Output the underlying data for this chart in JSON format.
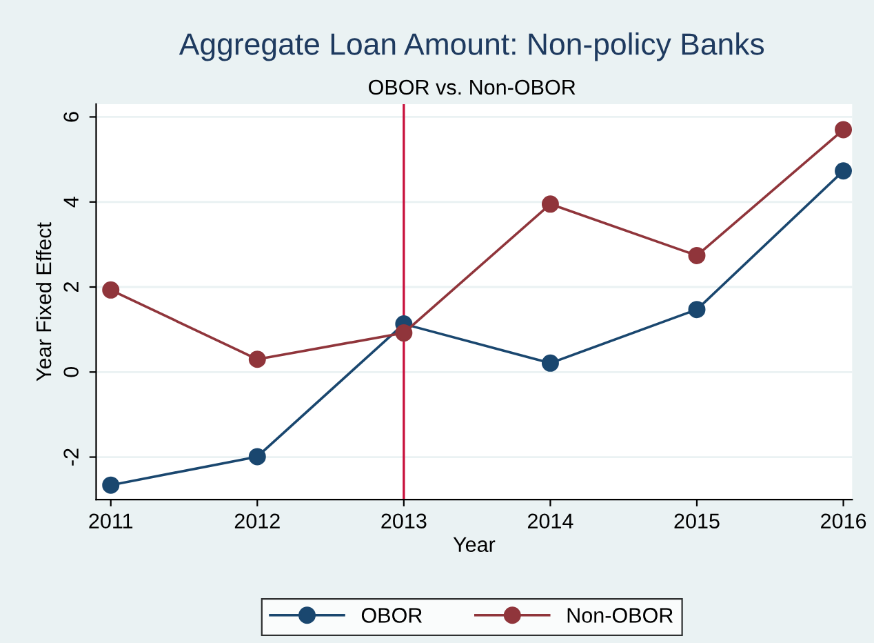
{
  "chart_data": {
    "type": "line",
    "title": "Aggregate Loan Amount: Non-policy Banks",
    "subtitle": "OBOR vs. Non-OBOR",
    "xlabel": "Year",
    "ylabel": "Year Fixed Effect",
    "x": [
      2011,
      2012,
      2013,
      2014,
      2015,
      2016
    ],
    "series": [
      {
        "name": "OBOR",
        "color": "#1a476f",
        "values": [
          -2.66,
          -1.99,
          1.13,
          0.21,
          1.47,
          4.73
        ]
      },
      {
        "name": "Non-OBOR",
        "color": "#90353b",
        "values": [
          1.93,
          0.3,
          0.92,
          3.95,
          2.74,
          5.7
        ]
      }
    ],
    "xlim": [
      2010.9,
      2016.06
    ],
    "xticks": [
      2011,
      2012,
      2013,
      2014,
      2015,
      2016
    ],
    "ylim": [
      -3.0,
      6.3
    ],
    "yticks": [
      -2,
      0,
      2,
      4,
      6
    ],
    "ref_lines": [
      {
        "axis": "x",
        "value": 2013,
        "color": "#c8103c"
      }
    ],
    "grid": "y",
    "legend": "bottom",
    "marker": "circle",
    "line_style": "solid"
  }
}
